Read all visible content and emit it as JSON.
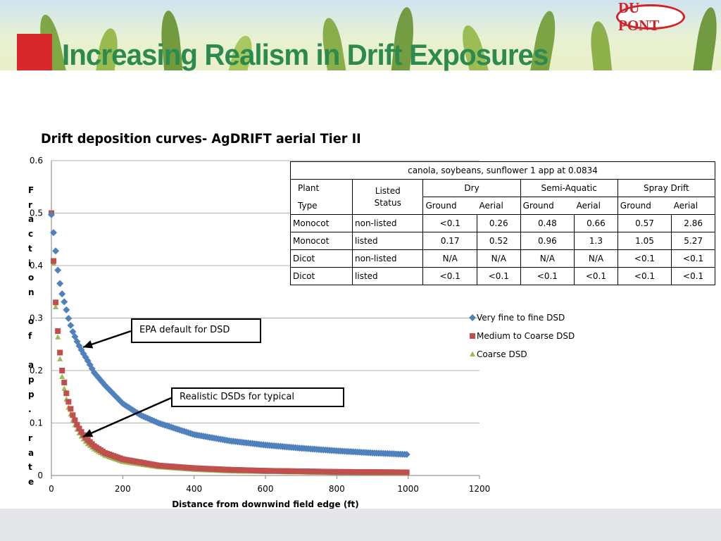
{
  "slide": {
    "title": "Increasing Realism in Drift Exposures",
    "logo_text": "DU PONT",
    "subtitle": "Drift deposition curves- AgDRIFT aerial Tier II"
  },
  "chart_data": {
    "type": "scatter",
    "xlabel": "Distance from downwind field edge (ft)",
    "ylabel": "Fraction of app. rate",
    "xlim": [
      0,
      1200
    ],
    "ylim": [
      0,
      0.6
    ],
    "x_ticks": [
      "0",
      "200",
      "400",
      "600",
      "800",
      "1000",
      "1200"
    ],
    "y_ticks": [
      "0",
      "0.1",
      "0.2",
      "0.3",
      "0.4",
      "0.5",
      "0.6"
    ],
    "grid": "horizontal",
    "legend_position": "right",
    "series": [
      {
        "name": "Very fine to fine DSD",
        "marker": "diamond",
        "color": "#4f81bd",
        "x": [
          0,
          10,
          20,
          30,
          40,
          50,
          60,
          70,
          80,
          90,
          100,
          120,
          150,
          200,
          250,
          300,
          400,
          500,
          600,
          700,
          800,
          900,
          1000
        ],
        "y": [
          0.497,
          0.44,
          0.379,
          0.346,
          0.321,
          0.294,
          0.274,
          0.258,
          0.244,
          0.232,
          0.221,
          0.196,
          0.172,
          0.137,
          0.115,
          0.1,
          0.078,
          0.066,
          0.058,
          0.052,
          0.047,
          0.043,
          0.04
        ]
      },
      {
        "name": "Medium to Coarse DSD",
        "marker": "square",
        "color": "#c0504d",
        "x": [
          0,
          10,
          20,
          30,
          40,
          50,
          60,
          70,
          80,
          90,
          100,
          120,
          150,
          200,
          300,
          400,
          500,
          600,
          800,
          1000
        ],
        "y": [
          0.5,
          0.348,
          0.257,
          0.2,
          0.162,
          0.135,
          0.115,
          0.099,
          0.087,
          0.077,
          0.069,
          0.056,
          0.043,
          0.031,
          0.019,
          0.014,
          0.011,
          0.009,
          0.007,
          0.006
        ]
      },
      {
        "name": "Coarse DSD",
        "marker": "triangle",
        "color": "#9bbb59",
        "x": [
          0,
          10,
          20,
          30,
          40,
          50,
          60,
          70,
          80,
          90,
          100,
          120,
          150,
          200,
          300,
          400,
          500,
          600,
          800,
          1000
        ],
        "y": [
          0.5,
          0.34,
          0.244,
          0.188,
          0.15,
          0.124,
          0.105,
          0.09,
          0.078,
          0.069,
          0.061,
          0.05,
          0.038,
          0.026,
          0.016,
          0.011,
          0.008,
          0.007,
          0.005,
          0.004
        ]
      }
    ],
    "annotations": [
      {
        "text": "EPA default for DSD",
        "points_to": "Very fine to fine DSD near x=90"
      },
      {
        "text": "Realistic DSDs for typical",
        "points_to": "Medium/Coarse curves near x=90"
      }
    ]
  },
  "table": {
    "caption": "canola, soybeans, sunflower 1 app at 0.0834",
    "col_plant": "Plant",
    "col_type": "Type",
    "col_status_line1": "Listed",
    "col_status_line2": "Status",
    "groups": [
      "Dry",
      "Semi-Aquatic",
      "Spray Drift"
    ],
    "sub_headers": [
      "Ground",
      "Aerial",
      "Ground",
      "Aerial",
      "Ground",
      "Aerial"
    ],
    "rows": [
      {
        "plant": "Monocot",
        "status": "non-listed",
        "values": [
          "<0.1",
          "0.26",
          "0.48",
          "0.66",
          "0.57",
          "2.86"
        ]
      },
      {
        "plant": "Monocot",
        "status": "listed",
        "values": [
          "0.17",
          "0.52",
          "0.96",
          "1.3",
          "1.05",
          "5.27"
        ]
      },
      {
        "plant": "Dicot",
        "status": "non-listed",
        "values": [
          "N/A",
          "N/A",
          "N/A",
          "N/A",
          "<0.1",
          "<0.1"
        ]
      },
      {
        "plant": "Dicot",
        "status": "listed",
        "values": [
          "<0.1",
          "<0.1",
          "<0.1",
          "<0.1",
          "<0.1",
          "<0.1"
        ]
      }
    ]
  }
}
